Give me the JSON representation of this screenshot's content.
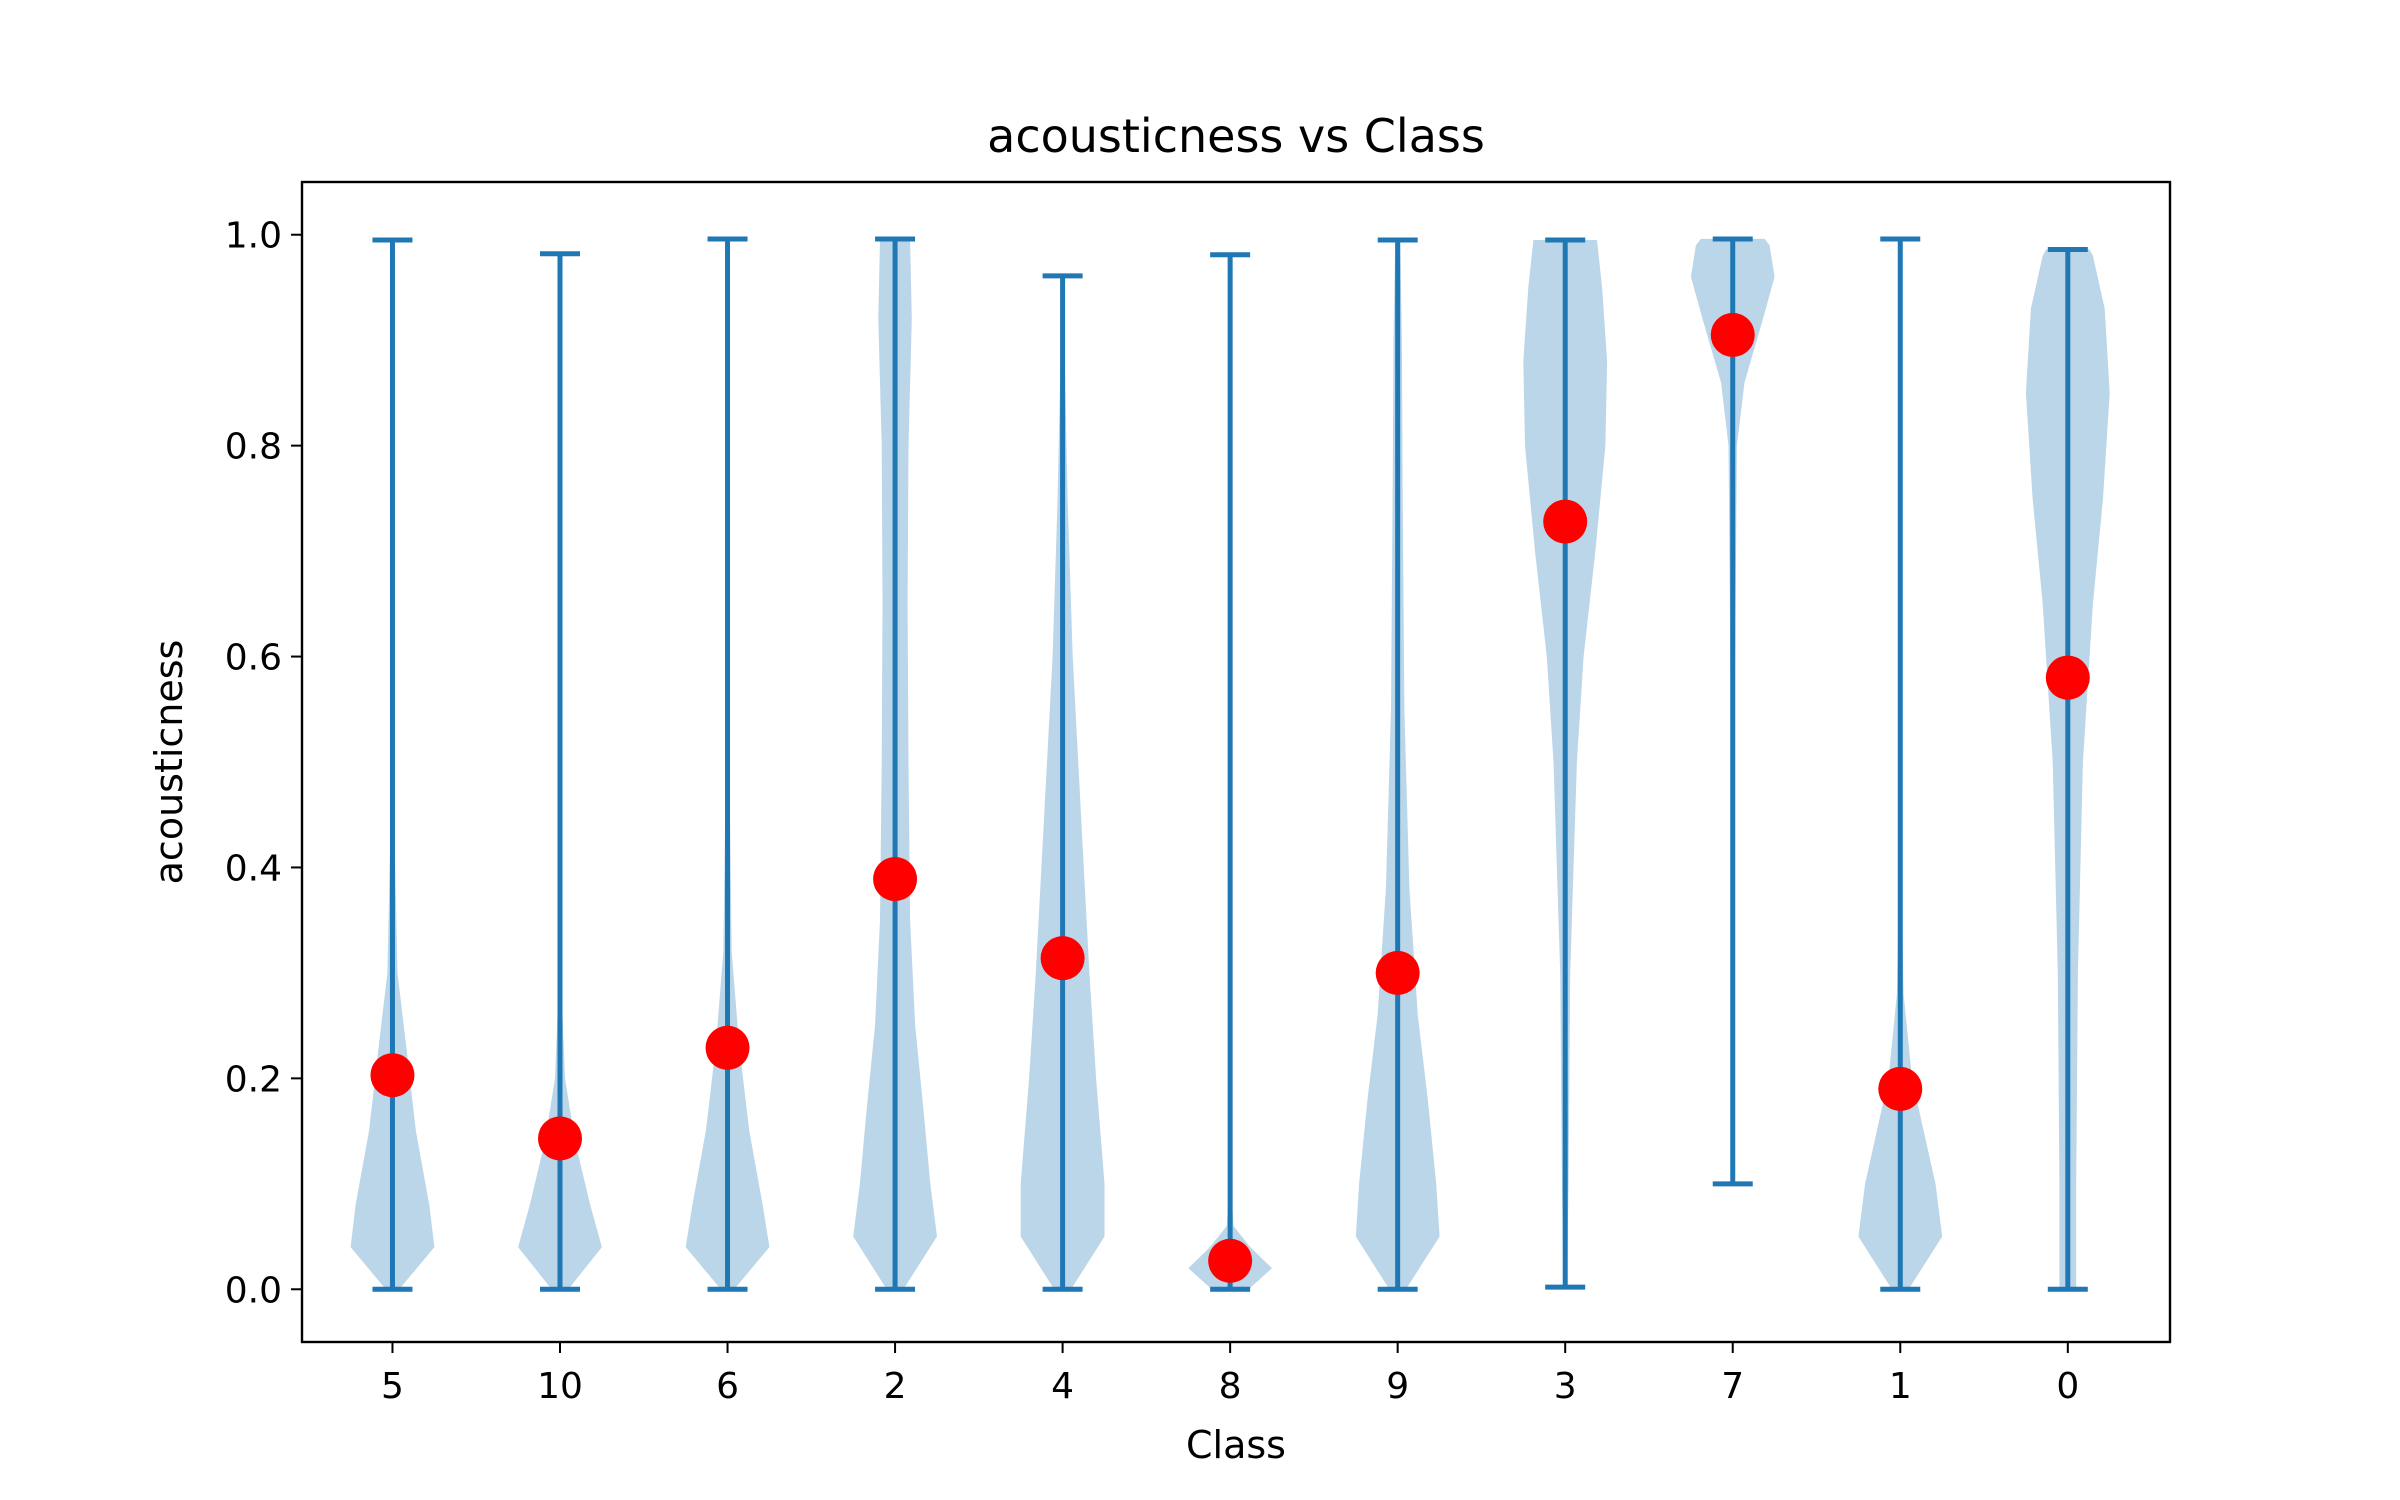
{
  "chart_data": {
    "type": "violin",
    "title": "acousticness vs Class",
    "xlabel": "Class",
    "ylabel": "acousticness",
    "categories": [
      "5",
      "10",
      "6",
      "2",
      "4",
      "8",
      "9",
      "3",
      "7",
      "1",
      "0"
    ],
    "ylim": [
      -0.05,
      1.05
    ],
    "yticks": [
      "0.0",
      "0.2",
      "0.4",
      "0.6",
      "0.8",
      "1.0"
    ],
    "grid": false,
    "legend": "none",
    "series": [
      {
        "mean_marker_color": "#ff0000",
        "whisker_color": "#1f77b4",
        "violin_fill_color": "#1f77b4",
        "values_min": [
          0.0,
          0.0,
          0.0,
          0.0,
          0.0,
          0.0,
          0.0,
          0.002,
          0.1,
          0.0,
          0.0
        ],
        "values_max": [
          0.995,
          0.982,
          0.996,
          0.996,
          0.961,
          0.981,
          0.995,
          0.995,
          0.996,
          0.996,
          0.986
        ],
        "values_mean": [
          0.203,
          0.143,
          0.229,
          0.389,
          0.314,
          0.027,
          0.3,
          0.728,
          0.905,
          0.19,
          0.58
        ]
      }
    ],
    "violin_width_profiles": [
      [
        [
          0,
          0.08
        ],
        [
          0.04,
          0.5
        ],
        [
          0.08,
          0.44
        ],
        [
          0.15,
          0.28
        ],
        [
          0.22,
          0.18
        ],
        [
          0.3,
          0.06
        ],
        [
          0.45,
          0.02
        ],
        [
          0.7,
          0.0
        ],
        [
          1.0,
          0.0
        ]
      ],
      [
        [
          0,
          0.1
        ],
        [
          0.04,
          0.5
        ],
        [
          0.08,
          0.36
        ],
        [
          0.14,
          0.18
        ],
        [
          0.2,
          0.06
        ],
        [
          0.3,
          0.01
        ],
        [
          0.5,
          0.0
        ],
        [
          1.0,
          0.0
        ]
      ],
      [
        [
          0,
          0.08
        ],
        [
          0.04,
          0.5
        ],
        [
          0.08,
          0.42
        ],
        [
          0.15,
          0.26
        ],
        [
          0.23,
          0.14
        ],
        [
          0.32,
          0.05
        ],
        [
          0.5,
          0.02
        ],
        [
          1.0,
          0.0
        ]
      ],
      [
        [
          0,
          0.1
        ],
        [
          0.05,
          0.5
        ],
        [
          0.1,
          0.42
        ],
        [
          0.17,
          0.34
        ],
        [
          0.25,
          0.24
        ],
        [
          0.35,
          0.18
        ],
        [
          0.5,
          0.16
        ],
        [
          0.65,
          0.15
        ],
        [
          0.8,
          0.16
        ],
        [
          0.92,
          0.2
        ],
        [
          1.0,
          0.18
        ]
      ],
      [
        [
          0,
          0.1
        ],
        [
          0.05,
          0.5
        ],
        [
          0.1,
          0.5
        ],
        [
          0.2,
          0.4
        ],
        [
          0.3,
          0.32
        ],
        [
          0.45,
          0.22
        ],
        [
          0.6,
          0.12
        ],
        [
          0.75,
          0.06
        ],
        [
          0.9,
          0.02
        ],
        [
          0.96,
          0.0
        ]
      ],
      [
        [
          0,
          0.22
        ],
        [
          0.02,
          0.5
        ],
        [
          0.04,
          0.24
        ],
        [
          0.06,
          0.04
        ],
        [
          0.1,
          0.01
        ],
        [
          0.3,
          0.0
        ],
        [
          1.0,
          0.0
        ]
      ],
      [
        [
          0,
          0.1
        ],
        [
          0.05,
          0.5
        ],
        [
          0.1,
          0.46
        ],
        [
          0.18,
          0.36
        ],
        [
          0.26,
          0.24
        ],
        [
          0.38,
          0.14
        ],
        [
          0.55,
          0.08
        ],
        [
          0.75,
          0.06
        ],
        [
          0.9,
          0.05
        ],
        [
          1.0,
          0.03
        ]
      ],
      [
        [
          0,
          0.02
        ],
        [
          0.1,
          0.04
        ],
        [
          0.3,
          0.06
        ],
        [
          0.5,
          0.14
        ],
        [
          0.6,
          0.22
        ],
        [
          0.7,
          0.36
        ],
        [
          0.8,
          0.48
        ],
        [
          0.88,
          0.5
        ],
        [
          0.95,
          0.44
        ],
        [
          1.0,
          0.38
        ]
      ],
      [
        [
          0.1,
          0.0
        ],
        [
          0.5,
          0.02
        ],
        [
          0.8,
          0.05
        ],
        [
          0.86,
          0.14
        ],
        [
          0.92,
          0.36
        ],
        [
          0.96,
          0.5
        ],
        [
          0.99,
          0.44
        ],
        [
          1.0,
          0.38
        ]
      ],
      [
        [
          0,
          0.1
        ],
        [
          0.05,
          0.5
        ],
        [
          0.1,
          0.42
        ],
        [
          0.15,
          0.28
        ],
        [
          0.2,
          0.14
        ],
        [
          0.28,
          0.04
        ],
        [
          0.4,
          0.01
        ],
        [
          1.0,
          0.0
        ]
      ],
      [
        [
          0,
          0.1
        ],
        [
          0.1,
          0.1
        ],
        [
          0.3,
          0.12
        ],
        [
          0.5,
          0.18
        ],
        [
          0.65,
          0.3
        ],
        [
          0.75,
          0.42
        ],
        [
          0.85,
          0.5
        ],
        [
          0.93,
          0.44
        ],
        [
          0.98,
          0.3
        ],
        [
          1.0,
          0.26
        ]
      ]
    ]
  }
}
